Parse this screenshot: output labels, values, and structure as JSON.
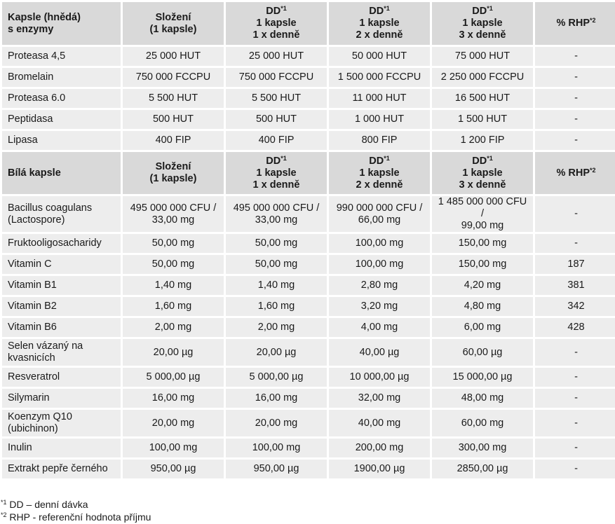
{
  "header_enzymy": {
    "name_line1": "Kapsle (hnědá)",
    "name_line2": "s enzymy",
    "slozeni_line1": "Složení",
    "slozeni_line2": "(1 kapsle)",
    "dd_label": "DD",
    "dd_sup": "*1",
    "dd1_line2": "1 kapsle",
    "dd1_line3": "1 x denně",
    "dd2_line2": "1 kapsle",
    "dd2_line3": "2 x denně",
    "dd3_line2": "1 kapsle",
    "dd3_line3": "3 x denně",
    "rhp_label": "% RHP",
    "rhp_sup": "*2"
  },
  "enzymy_rows": [
    {
      "name": "Proteasa 4,5",
      "slozeni": "25 000 HUT",
      "dd1": "25 000 HUT",
      "dd2": "50 000 HUT",
      "dd3": "75 000 HUT",
      "rhp": "-"
    },
    {
      "name": "Bromelain",
      "slozeni": "750 000 FCCPU",
      "dd1": "750 000 FCCPU",
      "dd2": "1 500 000 FCCPU",
      "dd3": "2 250 000 FCCPU",
      "rhp": "-"
    },
    {
      "name": "Proteasa 6.0",
      "slozeni": "5 500 HUT",
      "dd1": "5 500 HUT",
      "dd2": "11 000 HUT",
      "dd3": "16 500 HUT",
      "rhp": "-"
    },
    {
      "name": "Peptidasa",
      "slozeni": "500 HUT",
      "dd1": "500 HUT",
      "dd2": "1 000 HUT",
      "dd3": "1 500 HUT",
      "rhp": "-"
    },
    {
      "name": "Lipasa",
      "slozeni": "400 FIP",
      "dd1": "400 FIP",
      "dd2": "800 FIP",
      "dd3": "1 200 FIP",
      "rhp": "-"
    }
  ],
  "header_bila": {
    "name": "Bílá kapsle",
    "slozeni_line1": "Složení",
    "slozeni_line2": "(1 kapsle)",
    "dd_label": "DD",
    "dd_sup": "*1",
    "dd1_line2": "1 kapsle",
    "dd1_line3": "1 x denně",
    "dd2_line2": "1 kapsle",
    "dd2_line3": "2 x denně",
    "dd3_line2": "1 kapsle",
    "dd3_line3": "3 x denně",
    "rhp_label": "% RHP",
    "rhp_sup": "*2"
  },
  "bila_rows": [
    {
      "name1": "Bacillus coagulans",
      "name2": "(Lactospore)",
      "slozeni1": "495 000 000 CFU /",
      "slozeni2": "33,00 mg",
      "dd1_1": "495 000 000 CFU /",
      "dd1_2": "33,00 mg",
      "dd2_1": "990 000 000 CFU /",
      "dd2_2": "66,00 mg",
      "dd3_1": "1 485 000 000 CFU /",
      "dd3_2": "99,00 mg",
      "rhp": "-"
    },
    {
      "name1": "Fruktooligosacharidy",
      "name2": "",
      "slozeni1": "50,00 mg",
      "slozeni2": "",
      "dd1_1": "50,00 mg",
      "dd1_2": "",
      "dd2_1": "100,00 mg",
      "dd2_2": "",
      "dd3_1": "150,00 mg",
      "dd3_2": "",
      "rhp": "-"
    },
    {
      "name1": "Vitamin C",
      "name2": "",
      "slozeni1": "50,00 mg",
      "slozeni2": "",
      "dd1_1": "50,00 mg",
      "dd1_2": "",
      "dd2_1": "100,00 mg",
      "dd2_2": "",
      "dd3_1": "150,00 mg",
      "dd3_2": "",
      "rhp": "187"
    },
    {
      "name1": "Vitamin B1",
      "name2": "",
      "slozeni1": "1,40 mg",
      "slozeni2": "",
      "dd1_1": "1,40 mg",
      "dd1_2": "",
      "dd2_1": "2,80 mg",
      "dd2_2": "",
      "dd3_1": "4,20 mg",
      "dd3_2": "",
      "rhp": "381"
    },
    {
      "name1": "Vitamin B2",
      "name2": "",
      "slozeni1": "1,60 mg",
      "slozeni2": "",
      "dd1_1": "1,60 mg",
      "dd1_2": "",
      "dd2_1": "3,20 mg",
      "dd2_2": "",
      "dd3_1": "4,80 mg",
      "dd3_2": "",
      "rhp": "342"
    },
    {
      "name1": "Vitamin B6",
      "name2": "",
      "slozeni1": "2,00 mg",
      "slozeni2": "",
      "dd1_1": "2,00 mg",
      "dd1_2": "",
      "dd2_1": "4,00 mg",
      "dd2_2": "",
      "dd3_1": "6,00 mg",
      "dd3_2": "",
      "rhp": "428"
    },
    {
      "name1": "Selen vázaný na",
      "name2": "kvasnicích",
      "slozeni1": "20,00 µg",
      "slozeni2": "",
      "dd1_1": "20,00 µg",
      "dd1_2": "",
      "dd2_1": "40,00 µg",
      "dd2_2": "",
      "dd3_1": "60,00 µg",
      "dd3_2": "",
      "rhp": "-"
    },
    {
      "name1": "Resveratrol",
      "name2": "",
      "slozeni1": "5 000,00 µg",
      "slozeni2": "",
      "dd1_1": "5 000,00 µg",
      "dd1_2": "",
      "dd2_1": "10 000,00 µg",
      "dd2_2": "",
      "dd3_1": "15 000,00 µg",
      "dd3_2": "",
      "rhp": "-"
    },
    {
      "name1": "Silymarin",
      "name2": "",
      "slozeni1": "16,00 mg",
      "slozeni2": "",
      "dd1_1": "16,00 mg",
      "dd1_2": "",
      "dd2_1": "32,00 mg",
      "dd2_2": "",
      "dd3_1": "48,00 mg",
      "dd3_2": "",
      "rhp": "-"
    },
    {
      "name1": "Koenzym Q10",
      "name2": "(ubichinon)",
      "slozeni1": "20,00 mg",
      "slozeni2": "",
      "dd1_1": "20,00 mg",
      "dd1_2": "",
      "dd2_1": "40,00 mg",
      "dd2_2": "",
      "dd3_1": "60,00 mg",
      "dd3_2": "",
      "rhp": "-"
    },
    {
      "name1": "Inulin",
      "name2": "",
      "slozeni1": "100,00 mg",
      "slozeni2": "",
      "dd1_1": "100,00 mg",
      "dd1_2": "",
      "dd2_1": "200,00 mg",
      "dd2_2": "",
      "dd3_1": "300,00 mg",
      "dd3_2": "",
      "rhp": "-"
    },
    {
      "name1": "Extrakt pepře černého",
      "name2": "",
      "slozeni1": "950,00 µg",
      "slozeni2": "",
      "dd1_1": "950,00 µg",
      "dd1_2": "",
      "dd2_1": "1900,00 µg",
      "dd2_2": "",
      "dd3_1": "2850,00 µg",
      "dd3_2": "",
      "rhp": "-"
    }
  ],
  "footnotes": [
    {
      "mark": "*1",
      "text": " DD – denní dávka"
    },
    {
      "mark": "*2",
      "text": " RHP - referenční hodnota příjmu"
    }
  ]
}
